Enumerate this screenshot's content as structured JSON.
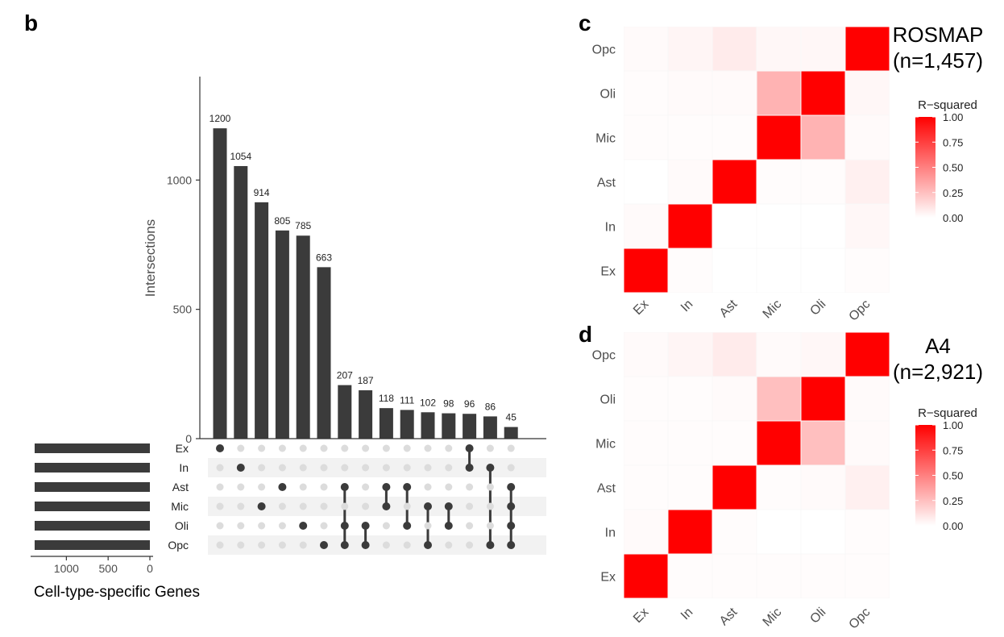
{
  "colors": {
    "bar": "#3b3b3b",
    "dot_active": "#3b3b3b",
    "dot_inactive": "#dcdcdc",
    "stripe": "#f2f2f2",
    "heat_high": "#ff0000",
    "heat_low": "#ffffff"
  },
  "chart_data": [
    {
      "panel": "b",
      "type": "bar",
      "subtype": "upset",
      "ylabel": "Intersections",
      "yticks": [
        0,
        500,
        1000
      ],
      "ylim": [
        0,
        1400
      ],
      "values": [
        1200,
        1054,
        914,
        805,
        785,
        663,
        207,
        187,
        118,
        111,
        102,
        98,
        96,
        86,
        45
      ],
      "sets": [
        "Ex",
        "In",
        "Ast",
        "Mic",
        "Oli",
        "Opc"
      ],
      "membership": [
        [
          "Ex"
        ],
        [
          "In"
        ],
        [
          "Mic"
        ],
        [
          "Ast"
        ],
        [
          "Oli"
        ],
        [
          "Opc"
        ],
        [
          "Ast",
          "Oli",
          "Opc"
        ],
        [
          "Oli",
          "Opc"
        ],
        [
          "Ast",
          "Mic"
        ],
        [
          "Ast",
          "Oli"
        ],
        [
          "Mic",
          "Opc"
        ],
        [
          "Mic",
          "Oli"
        ],
        [
          "Ex",
          "In"
        ],
        [
          "In",
          "Opc"
        ],
        [
          "Ast",
          "Mic",
          "Oli",
          "Opc"
        ]
      ],
      "set_sizes": [
        1380,
        1380,
        1380,
        1380,
        1380,
        1380
      ],
      "set_size_xlabel": "Cell-type-specific Genes",
      "set_size_ticks": [
        1000,
        500,
        0
      ]
    },
    {
      "panel": "c",
      "type": "heatmap",
      "title": "ROSMAP",
      "subtitle": "(n=1,457)",
      "x_categories": [
        "Ex",
        "In",
        "Ast",
        "Mic",
        "Oli",
        "Opc"
      ],
      "y_categories": [
        "Ex",
        "In",
        "Ast",
        "Mic",
        "Oli",
        "Opc"
      ],
      "values": [
        [
          1.0,
          0.01,
          0.0,
          0.0,
          0.0,
          0.01
        ],
        [
          0.02,
          1.0,
          0.0,
          0.0,
          0.0,
          0.03
        ],
        [
          0.0,
          0.02,
          1.0,
          0.01,
          0.01,
          0.06
        ],
        [
          0.01,
          0.01,
          0.01,
          1.0,
          0.3,
          0.02
        ],
        [
          0.01,
          0.02,
          0.02,
          0.3,
          1.0,
          0.03
        ],
        [
          0.02,
          0.04,
          0.08,
          0.03,
          0.03,
          1.0
        ]
      ],
      "legend_title": "R−squared",
      "legend_ticks": [
        "1.00",
        "0.75",
        "0.50",
        "0.25",
        "0.00"
      ]
    },
    {
      "panel": "d",
      "type": "heatmap",
      "title": "A4",
      "subtitle": "(n=2,921)",
      "x_categories": [
        "Ex",
        "In",
        "Ast",
        "Mic",
        "Oli",
        "Opc"
      ],
      "y_categories": [
        "Ex",
        "In",
        "Ast",
        "Mic",
        "Oli",
        "Opc"
      ],
      "values": [
        [
          1.0,
          0.01,
          0.01,
          0.01,
          0.01,
          0.01
        ],
        [
          0.02,
          1.0,
          0.01,
          0.0,
          0.0,
          0.01
        ],
        [
          0.01,
          0.01,
          1.0,
          0.01,
          0.02,
          0.06
        ],
        [
          0.01,
          0.01,
          0.01,
          1.0,
          0.25,
          0.02
        ],
        [
          0.01,
          0.01,
          0.02,
          0.25,
          1.0,
          0.02
        ],
        [
          0.02,
          0.04,
          0.08,
          0.02,
          0.03,
          1.0
        ]
      ],
      "legend_title": "R−squared",
      "legend_ticks": [
        "1.00",
        "0.75",
        "0.50",
        "0.25",
        "0.00"
      ]
    }
  ]
}
